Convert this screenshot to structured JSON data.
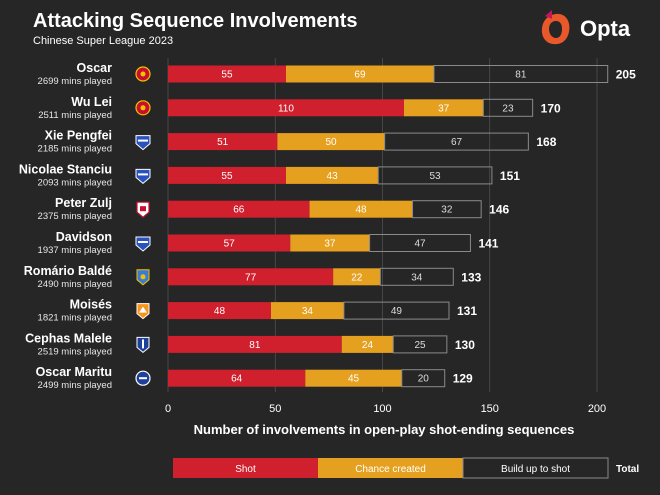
{
  "header": {
    "title": "Attacking Sequence Involvements",
    "subtitle": "Chinese Super League 2023",
    "brand": "Opta"
  },
  "colors": {
    "background": "#262626",
    "shot": "#d0202e",
    "chance": "#e6a020",
    "buildup_stroke": "#8a8a8a",
    "grid": "#555555"
  },
  "chart_data": {
    "type": "bar",
    "orientation": "horizontal",
    "stacked": true,
    "title": "Attacking Sequence Involvements",
    "subtitle": "Chinese Super League 2023",
    "xlabel": "Number of involvements in open-play shot-ending sequences",
    "ylabel": "",
    "xlim": [
      0,
      200
    ],
    "xticks": [
      0,
      50,
      100,
      150,
      200
    ],
    "grid": "vertical",
    "legend": [
      "Shot",
      "Chance created",
      "Build up to shot",
      "Total"
    ],
    "legend_position": "bottom",
    "categories": [
      "Oscar",
      "Wu Lei",
      "Xie Pengfei",
      "Nicolae Stanciu",
      "Peter Zulj",
      "Davidson",
      "Romário Baldé",
      "Moisés",
      "Cephas Malele",
      "Oscar Maritu"
    ],
    "minutes": [
      "2699 mins played",
      "2511 mins played",
      "2185 mins played",
      "2093 mins played",
      "2375 mins played",
      "1937 mins played",
      "2490 mins played",
      "1821 mins played",
      "2519 mins played",
      "2499 mins played"
    ],
    "series": [
      {
        "name": "Shot",
        "values": [
          55,
          110,
          51,
          55,
          66,
          57,
          77,
          48,
          81,
          64
        ]
      },
      {
        "name": "Chance created",
        "values": [
          69,
          37,
          50,
          43,
          48,
          37,
          22,
          34,
          24,
          45
        ]
      },
      {
        "name": "Build up to shot",
        "values": [
          81,
          23,
          67,
          53,
          32,
          47,
          34,
          49,
          25,
          20
        ]
      }
    ],
    "totals": [
      205,
      170,
      168,
      151,
      146,
      141,
      133,
      131,
      130,
      129
    ],
    "club_badges": [
      "shanghai-port-badge",
      "shanghai-port-badge",
      "wuhan-three-towns-badge",
      "wuhan-three-towns-badge",
      "chengdu-rongcheng-badge",
      "wuhan-three-towns-badge",
      "meizhou-hakka-badge",
      "shandong-taishan-badge",
      "shanghai-shenhua-badge",
      "dalian-badge"
    ]
  }
}
